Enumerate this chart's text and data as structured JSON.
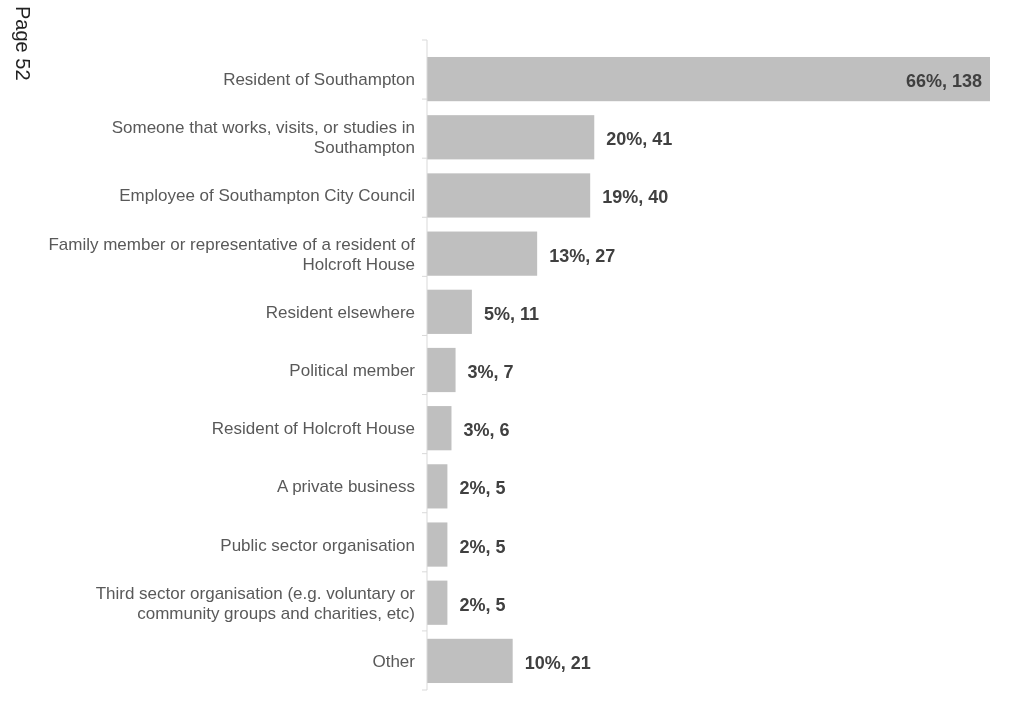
{
  "chart_data": {
    "type": "bar",
    "orientation": "horizontal",
    "categories": [
      "Resident of Southampton",
      "Someone that works, visits, or studies in Southampton",
      "Employee of Southampton City Council",
      "Family member or representative of a resident of Holcroft House",
      "Resident elsewhere",
      "Political member",
      "Resident of Holcroft House",
      "A private business",
      "Public sector organisation",
      "Third sector organisation (e.g. voluntary or community groups and charities, etc)",
      "Other"
    ],
    "values": [
      138,
      41,
      40,
      27,
      11,
      7,
      6,
      5,
      5,
      5,
      21
    ],
    "value_labels": [
      "66%, 138",
      "20%, 41",
      "19%, 40",
      "13%, 27",
      "5%, 11",
      "3%, 7",
      "3%, 6",
      "2%, 5",
      "2%, 5",
      "2%, 5",
      "10%, 21"
    ],
    "color": "#bfbfbf",
    "annotations": [
      "Page 52"
    ]
  }
}
